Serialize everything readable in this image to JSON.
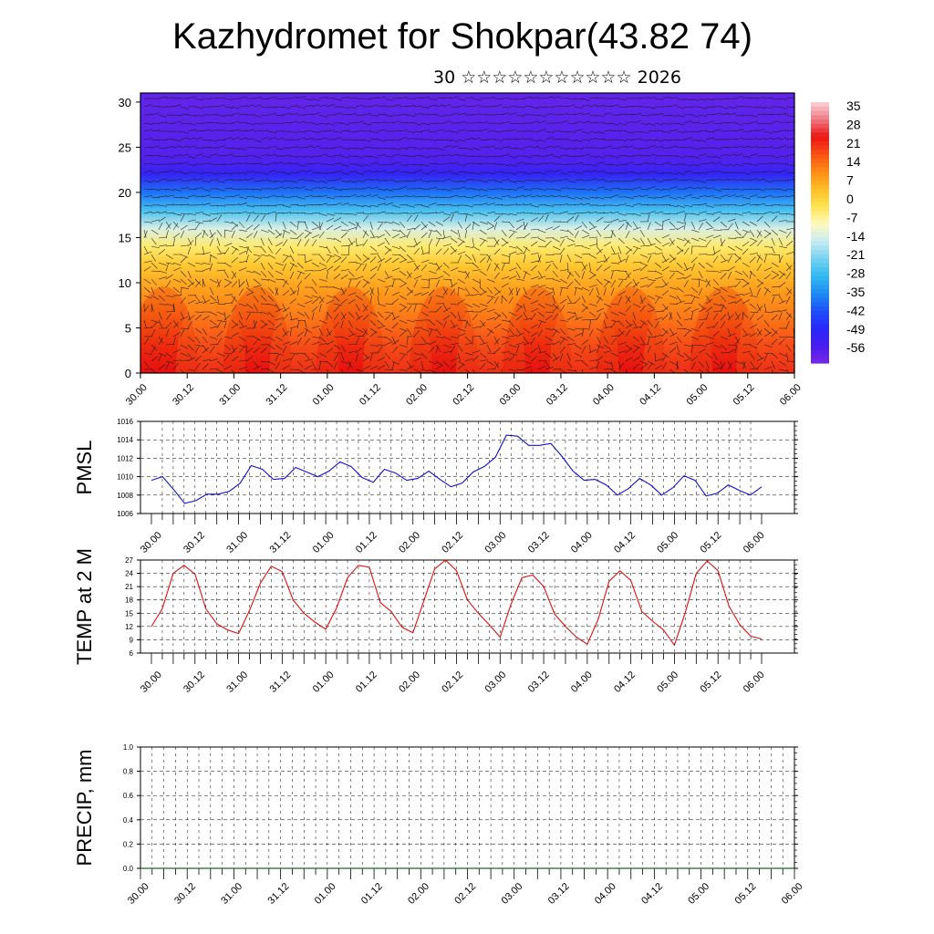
{
  "header": {
    "title": "Kazhydromet for Shokpar(43.82 74)",
    "subtitle": "30 ☆☆☆☆☆☆☆☆☆☆☆ 2026"
  },
  "colors": {
    "pmsl_line": "#1010d0",
    "temp_line": "#e01010",
    "precip_line": "#1a6b1a",
    "frame": "#000000"
  },
  "chart_data": [
    {
      "id": "cross_section",
      "type": "heatmap",
      "title": "",
      "xlabel": "",
      "ylabel": "",
      "x_ticks": [
        "30.00",
        "30.12",
        "31.00",
        "31.12",
        "01.00",
        "01.12",
        "02.00",
        "02.12",
        "03.00",
        "03.12",
        "04.00",
        "04.12",
        "05.00",
        "05.12",
        "06.00"
      ],
      "y_ticks": [
        "0",
        "5",
        "10",
        "15",
        "20",
        "25",
        "30"
      ],
      "ylim": [
        0,
        31
      ],
      "colorbar_labels": [
        "35",
        "28",
        "21",
        "14",
        "7",
        "0",
        "-7",
        "-14",
        "-21",
        "-28",
        "-35",
        "-42",
        "-49",
        "-56"
      ],
      "colorbar_range": [
        -63,
        42
      ],
      "temperature_profile": [
        {
          "height": 0,
          "value": 28
        },
        {
          "height": 3,
          "value": 24
        },
        {
          "height": 6,
          "value": 18
        },
        {
          "height": 9,
          "value": 12
        },
        {
          "height": 12,
          "value": 5
        },
        {
          "height": 14,
          "value": -2
        },
        {
          "height": 16,
          "value": -12
        },
        {
          "height": 18,
          "value": -26
        },
        {
          "height": 20,
          "value": -38
        },
        {
          "height": 22,
          "value": -52
        },
        {
          "height": 24,
          "value": -58
        },
        {
          "height": 31,
          "value": -60
        }
      ],
      "wind_barbs": true,
      "grid": false
    },
    {
      "id": "pmsl",
      "type": "line",
      "ylabel": "PMSL",
      "ylim": [
        1006,
        1016
      ],
      "y_ticks": [
        "1006",
        "1008",
        "1010",
        "1012",
        "1014",
        "1016"
      ],
      "x_ticks": [
        "30.00",
        "30.12",
        "31.00",
        "31.12",
        "01.00",
        "01.12",
        "02.00",
        "02.12",
        "03.00",
        "03.12",
        "04.00",
        "04.12",
        "05.00",
        "05.12",
        "06.00"
      ],
      "grid": true,
      "series": [
        {
          "values": [
            1009.6,
            1010.0,
            1008.6,
            1007.1,
            1007.4,
            1008.1,
            1008.1,
            1008.4,
            1009.3,
            1011.2,
            1010.8,
            1009.7,
            1009.8,
            1011.0,
            1010.5,
            1010.0,
            1010.6,
            1011.6,
            1011.1,
            1009.9,
            1009.4,
            1010.8,
            1010.4,
            1009.6,
            1009.8,
            1010.6,
            1009.7,
            1008.9,
            1009.3,
            1010.5,
            1011.1,
            1012.1,
            1014.5,
            1014.4,
            1013.4,
            1013.4,
            1013.6,
            1012.2,
            1010.6,
            1009.6,
            1009.7,
            1009.1,
            1008.0,
            1008.7,
            1009.8,
            1009.1,
            1008.0,
            1008.8,
            1010.1,
            1009.6,
            1007.9,
            1008.2,
            1009.1,
            1008.5,
            1008.0,
            1008.9
          ]
        }
      ]
    },
    {
      "id": "temp2m",
      "type": "line",
      "ylabel": "TEMP at 2 M",
      "ylim": [
        6,
        27
      ],
      "y_ticks": [
        "6",
        "9",
        "12",
        "15",
        "18",
        "21",
        "24",
        "27"
      ],
      "x_ticks": [
        "30.00",
        "30.12",
        "31.00",
        "31.12",
        "01.00",
        "01.12",
        "02.00",
        "02.12",
        "03.00",
        "03.12",
        "04.00",
        "04.12",
        "05.00",
        "05.12",
        "06.00"
      ],
      "grid": true,
      "series": [
        {
          "values": [
            12.0,
            16.0,
            24.0,
            25.8,
            23.8,
            16.0,
            12.6,
            11.2,
            10.4,
            15.6,
            21.8,
            25.6,
            24.4,
            18.0,
            15.0,
            13.0,
            11.4,
            16.2,
            23.0,
            25.8,
            25.4,
            17.4,
            15.4,
            11.8,
            10.6,
            17.8,
            25.0,
            27.0,
            24.6,
            18.0,
            15.0,
            12.4,
            9.6,
            17.0,
            23.0,
            23.6,
            21.0,
            14.8,
            12.0,
            9.6,
            8.0,
            13.6,
            22.2,
            24.6,
            22.4,
            15.4,
            13.2,
            11.2,
            7.8,
            15.2,
            24.0,
            26.8,
            24.6,
            16.6,
            12.4,
            9.8,
            9.2
          ]
        }
      ]
    },
    {
      "id": "precip",
      "type": "line",
      "ylabel": "PRECIP, mm",
      "ylim": [
        0.0,
        1.0
      ],
      "y_ticks": [
        "0.0",
        "0.2",
        "0.4",
        "0.6",
        "0.8",
        "1.0"
      ],
      "x_ticks": [
        "30.00",
        "30.12",
        "31.00",
        "31.12",
        "01.00",
        "01.12",
        "02.00",
        "02.12",
        "03.00",
        "03.12",
        "04.00",
        "04.12",
        "05.00",
        "05.12",
        "06.00"
      ],
      "grid": true,
      "series": [
        {
          "values": [
            0,
            0,
            0,
            0,
            0,
            0,
            0,
            0,
            0,
            0,
            0,
            0,
            0,
            0,
            0,
            0,
            0,
            0,
            0,
            0,
            0,
            0,
            0,
            0,
            0,
            0,
            0,
            0,
            0,
            0,
            0,
            0,
            0,
            0,
            0,
            0,
            0,
            0,
            0,
            0,
            0,
            0,
            0,
            0,
            0,
            0,
            0,
            0,
            0,
            0,
            0,
            0,
            0,
            0,
            0,
            0,
            0
          ]
        }
      ]
    }
  ]
}
